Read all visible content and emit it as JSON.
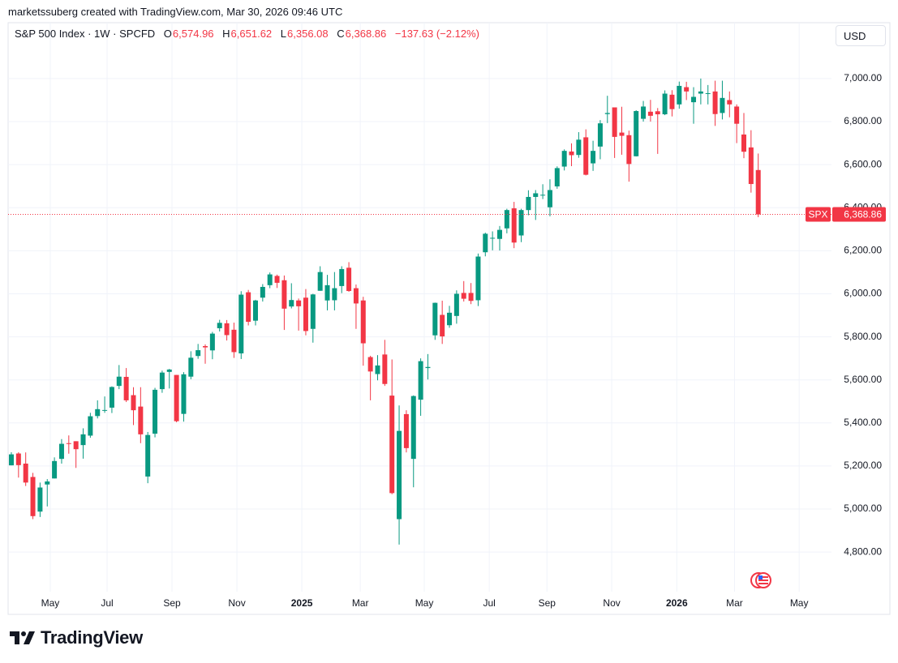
{
  "header": {
    "credit": "marketssuberg created with TradingView.com, Mar 30, 2026 09:46 UTC"
  },
  "footer": {
    "brand": "TradingView"
  },
  "chart_data": {
    "type": "candlestick",
    "title": "S&P 500 Index · 1W · SPCFD",
    "ohlc_labels": [
      "O",
      "H",
      "L",
      "C"
    ],
    "ohlc_value_labels": [
      "6,574.96",
      "6,651.62",
      "6,356.08",
      "6,368.86"
    ],
    "change_label": "−137.63 (−2.12%)",
    "currency": "USD",
    "symbol_tag": "SPX",
    "last_value_label": "6,368.86",
    "up_color": "#089981",
    "down_color": "#f23645",
    "grid": true,
    "xlim": [
      -0.45,
      114.2
    ],
    "xticks": [
      {
        "value": 5.42,
        "label": "May"
      },
      {
        "value": 13.33,
        "label": "Jul"
      },
      {
        "value": 22.37,
        "label": "Sep"
      },
      {
        "value": 31.41,
        "label": "Nov"
      },
      {
        "value": 40.45,
        "label": "2025"
      },
      {
        "value": 48.59,
        "label": "Mar"
      },
      {
        "value": 57.5,
        "label": "May"
      },
      {
        "value": 66.55,
        "label": "Jul"
      },
      {
        "value": 74.58,
        "label": "Sep"
      },
      {
        "value": 83.6,
        "label": "Nov"
      },
      {
        "value": 92.66,
        "label": "2026"
      },
      {
        "value": 100.7,
        "label": "Mar"
      },
      {
        "value": 109.7,
        "label": "May"
      }
    ],
    "ylim": [
      4616,
      7252
    ],
    "yticks": [
      {
        "value": 4800,
        "label": "4,800.00"
      },
      {
        "value": 5000,
        "label": "5,000.00"
      },
      {
        "value": 5200,
        "label": "5,200.00"
      },
      {
        "value": 5400,
        "label": "5,400.00"
      },
      {
        "value": 5600,
        "label": "5,600.00"
      },
      {
        "value": 5800,
        "label": "5,800.00"
      },
      {
        "value": 6000,
        "label": "6,000.00"
      },
      {
        "value": 6200,
        "label": "6,200.00"
      },
      {
        "value": 6400,
        "label": "6,400.00"
      },
      {
        "value": 6600,
        "label": "6,600.00"
      },
      {
        "value": 6800,
        "label": "6,800.00"
      },
      {
        "value": 7000,
        "label": "7,000.00"
      }
    ],
    "open": [
      5203,
      5258,
      5211,
      5149,
      4988,
      5114,
      5142,
      5233,
      5306,
      5315,
      5297,
      5341,
      5432,
      5460,
      5471,
      5572,
      5614,
      5529,
      5476,
      5151,
      5350,
      5557,
      5637,
      5623,
      5442,
      5615,
      5711,
      5757,
      5737,
      5840,
      5863,
      5833,
      5723,
      6007,
      5875,
      5982,
      6040,
      6083,
      6063,
      5941,
      5969,
      5982,
      5837,
      6014,
      5969,
      5970,
      6036,
      6121,
      6026,
      5969,
      5706,
      5627,
      5718,
      5527,
      4953,
      5441,
      5233,
      5508,
      5655,
      5807,
      5902,
      5854,
      5897,
      6004,
      6004,
      5970,
      6193,
      6259,
      6255,
      6304,
      6397,
      6271,
      6389,
      6450,
      6457,
      6402,
      6499,
      6591,
      6661,
      6645,
      6727,
      6606,
      6684,
      6835,
      6866,
      6749,
      6737,
      6639,
      6813,
      6846,
      6848,
      6834,
      6925,
      6880,
      6960,
      6890,
      6930,
      6930,
      6940,
      6840,
      6900,
      6870,
      6740,
      6680,
      6574.96
    ],
    "high": [
      5264,
      5264,
      5263,
      5168,
      5123,
      5139,
      5240,
      5325,
      5342,
      5315,
      5375,
      5447,
      5505,
      5523,
      5570,
      5669,
      5655,
      5566,
      5566,
      5358,
      5563,
      5643,
      5651,
      5623,
      5636,
      5733,
      5767,
      5765,
      5823,
      5879,
      5878,
      5866,
      6012,
      6018,
      5972,
      6045,
      6099,
      6089,
      6085,
      6049,
      5978,
      6022,
      6000,
      6128,
      6088,
      6101,
      6128,
      6147,
      6043,
      5986,
      5712,
      5715,
      5786,
      5695,
      5481,
      5459,
      5528,
      5700,
      5720,
      5959,
      5968,
      5944,
      6016,
      6059,
      6050,
      6187,
      6284,
      6290,
      6315,
      6395,
      6427,
      6395,
      6481,
      6482,
      6509,
      6532,
      6592,
      6671,
      6699,
      6751,
      6764,
      6711,
      6807,
      6920,
      6866,
      6869,
      6758,
      6853,
      6896,
      6901,
      6863,
      6945,
      6946,
      6986,
      6985,
      6960,
      7000,
      6970,
      6990,
      6990,
      6940,
      6880,
      6840,
      6760,
      6651.62
    ],
    "low": [
      5203,
      5146,
      5107,
      4953,
      4963,
      5012,
      5142,
      5211,
      5257,
      5191,
      5234,
      5331,
      5421,
      5447,
      5446,
      5557,
      5497,
      5390,
      5306,
      5120,
      5333,
      5540,
      5560,
      5403,
      5406,
      5603,
      5698,
      5675,
      5696,
      5825,
      5783,
      5702,
      5697,
      5853,
      5853,
      5964,
      6026,
      6027,
      5832,
      5932,
      5829,
      5807,
      5773,
      6014,
      5923,
      5923,
      6003,
      6009,
      5837,
      5666,
      5505,
      5598,
      5572,
      5069,
      4835,
      5263,
      5101,
      5433,
      5602,
      5786,
      5767,
      5842,
      5861,
      5964,
      5952,
      5943,
      6174,
      6202,
      6201,
      6281,
      6212,
      6240,
      6365,
      6343,
      6440,
      6360,
      6488,
      6573,
      6593,
      6632,
      6550,
      6571,
      6625,
      6793,
      6631,
      6646,
      6521,
      6638,
      6800,
      6800,
      6650,
      6830,
      6824,
      6860,
      6900,
      6790,
      6880,
      6880,
      6780,
      6810,
      6820,
      6700,
      6630,
      6470,
      6356.08
    ],
    "close": [
      5254,
      5204,
      5123,
      4967,
      5100,
      5128,
      5223,
      5303,
      5305,
      5278,
      5347,
      5431,
      5464,
      5460,
      5567,
      5615,
      5505,
      5459,
      5347,
      5344,
      5554,
      5634,
      5648,
      5408,
      5626,
      5703,
      5738,
      5751,
      5815,
      5865,
      5808,
      5729,
      5996,
      5870,
      5969,
      6032,
      6090,
      6051,
      5931,
      5971,
      5942,
      5827,
      5997,
      6101,
      6040,
      6026,
      6115,
      6013,
      5955,
      5770,
      5639,
      5667,
      5581,
      5074,
      5363,
      5283,
      5525,
      5687,
      5660,
      5958,
      5802,
      5912,
      6000,
      5977,
      5967,
      6173,
      6279,
      6260,
      6297,
      6389,
      6238,
      6389,
      6450,
      6467,
      6460,
      6482,
      6584,
      6664,
      6644,
      6716,
      6553,
      6664,
      6792,
      6840,
      6729,
      6734,
      6603,
      6849,
      6870,
      6827,
      6834,
      6930,
      6858,
      6966,
      6940,
      6915,
      6940,
      6932,
      6835,
      6910,
      6880,
      6790,
      6660,
      6510,
      6368.86
    ]
  }
}
